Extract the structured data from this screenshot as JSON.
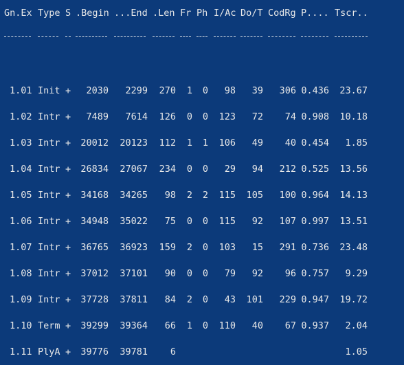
{
  "headers": [
    "Gn.Ex",
    "Type",
    "S",
    ".Begin",
    "...End",
    ".Len",
    "Fr",
    "Ph",
    "I/Ac",
    "Do/T",
    "CodRg",
    "P....",
    "Tscr.."
  ],
  "rows": [
    [
      "1.01",
      "Init",
      "+",
      "2030",
      "2299",
      "270",
      "1",
      "0",
      "98",
      "39",
      "306",
      "0.436",
      "23.67"
    ],
    [
      "1.02",
      "Intr",
      "+",
      "7489",
      "7614",
      "126",
      "0",
      "0",
      "123",
      "72",
      "74",
      "0.908",
      "10.18"
    ],
    [
      "1.03",
      "Intr",
      "+",
      "20012",
      "20123",
      "112",
      "1",
      "1",
      "106",
      "49",
      "40",
      "0.454",
      "1.85"
    ],
    [
      "1.04",
      "Intr",
      "+",
      "26834",
      "27067",
      "234",
      "0",
      "0",
      "29",
      "94",
      "212",
      "0.525",
      "13.56"
    ],
    [
      "1.05",
      "Intr",
      "+",
      "34168",
      "34265",
      "98",
      "2",
      "2",
      "115",
      "105",
      "100",
      "0.964",
      "14.13"
    ],
    [
      "1.06",
      "Intr",
      "+",
      "34948",
      "35022",
      "75",
      "0",
      "0",
      "115",
      "92",
      "107",
      "0.997",
      "13.51"
    ],
    [
      "1.07",
      "Intr",
      "+",
      "36765",
      "36923",
      "159",
      "2",
      "0",
      "103",
      "15",
      "291",
      "0.736",
      "23.48"
    ],
    [
      "1.08",
      "Intr",
      "+",
      "37012",
      "37101",
      "90",
      "0",
      "0",
      "79",
      "92",
      "96",
      "0.757",
      "9.29"
    ],
    [
      "1.09",
      "Intr",
      "+",
      "37728",
      "37811",
      "84",
      "2",
      "0",
      "43",
      "101",
      "229",
      "0.947",
      "19.72"
    ],
    [
      "1.10",
      "Term",
      "+",
      "39299",
      "39364",
      "66",
      "1",
      "0",
      "110",
      "40",
      "67",
      "0.937",
      "2.04"
    ],
    [
      "1.11",
      "PlyA",
      "+",
      "39776",
      "39781",
      "6",
      "",
      "",
      "",
      "",
      "",
      "",
      "1.05"
    ]
  ]
}
